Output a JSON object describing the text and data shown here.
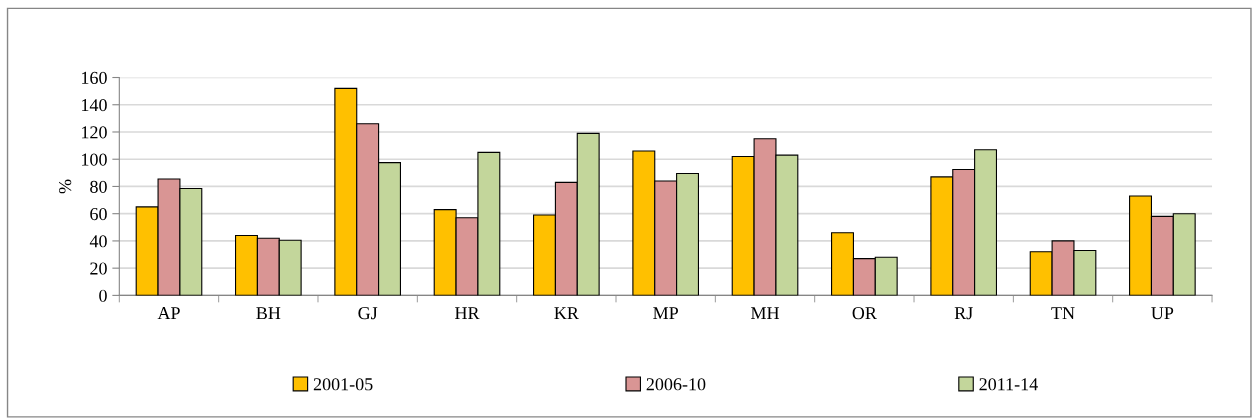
{
  "chart_data": {
    "type": "bar",
    "ylabel": "%",
    "categories": [
      "AP",
      "BH",
      "GJ",
      "HR",
      "KR",
      "MP",
      "MH",
      "OR",
      "RJ",
      "TN",
      "UP"
    ],
    "series": [
      {
        "name": "2001-05",
        "color": "#ffc000",
        "values": [
          65,
          44,
          152,
          63,
          59,
          106,
          102,
          46,
          87,
          32,
          73
        ]
      },
      {
        "name": "2006-10",
        "color": "#d99594",
        "values": [
          85.5,
          42,
          126,
          57,
          83,
          84,
          115,
          27,
          92.5,
          40,
          58
        ]
      },
      {
        "name": "2011-14",
        "color": "#c3d69b",
        "values": [
          78.5,
          40.5,
          97.5,
          105,
          119,
          89.5,
          103,
          28,
          107,
          33,
          60
        ]
      }
    ],
    "ylim": [
      0,
      160
    ],
    "yticks": [
      0,
      20,
      40,
      60,
      80,
      100,
      120,
      140,
      160
    ],
    "grid": "y",
    "legend": "bottom"
  }
}
